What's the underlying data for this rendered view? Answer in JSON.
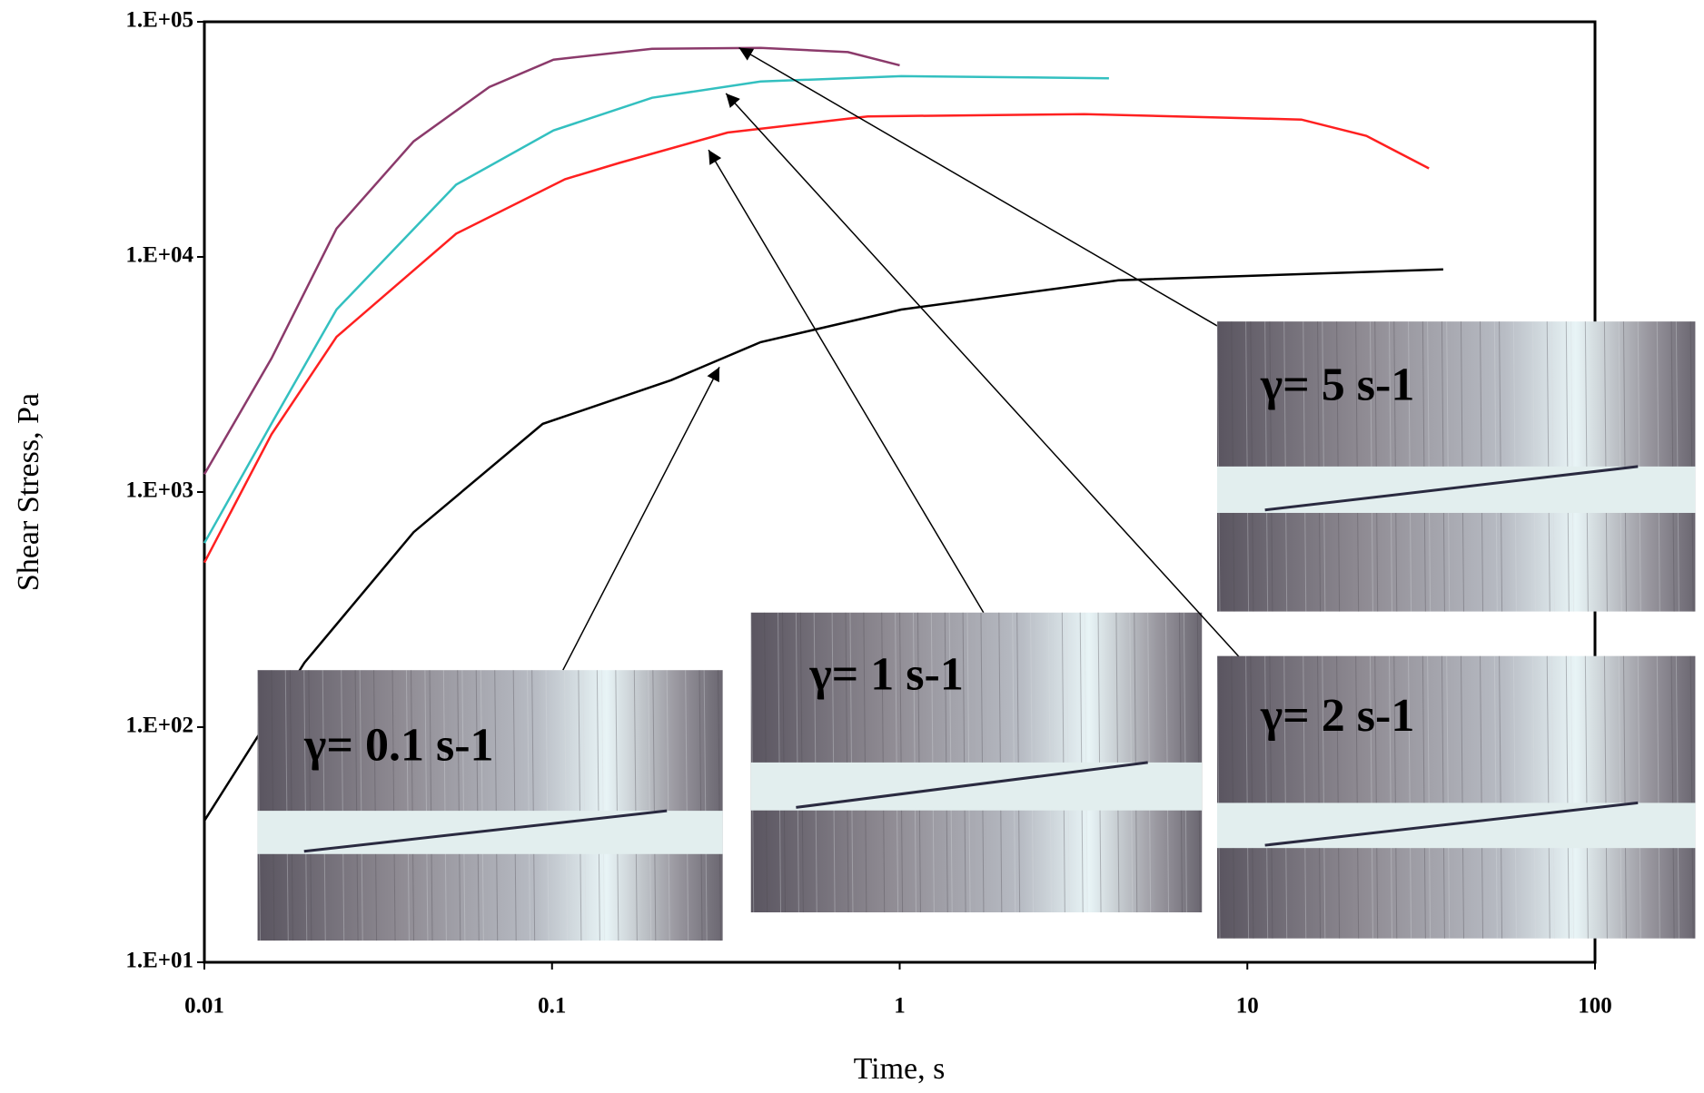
{
  "chart_data": {
    "type": "line",
    "xlabel": "Time, s",
    "ylabel": "Shear Stress, Pa",
    "log_x": true,
    "log_y": true,
    "xlim": [
      0.01,
      100
    ],
    "ylim": [
      10,
      100000
    ],
    "xticks": [
      0.01,
      0.1,
      1,
      10,
      100
    ],
    "yticks": [
      {
        "value": 10,
        "label": "1.E+01"
      },
      {
        "value": 100,
        "label": "1.E+02"
      },
      {
        "value": 1000,
        "label": "1.E+03"
      },
      {
        "value": 10000,
        "label": "1.E+04"
      },
      {
        "value": 100000,
        "label": "1.E+05"
      }
    ],
    "series": [
      {
        "color": "#8b3a6b",
        "x": [
          0.01,
          0.0156,
          0.024,
          0.04,
          0.066,
          0.101,
          0.194,
          0.398,
          0.71,
          1.0
        ],
        "values": [
          1190,
          3700,
          13200,
          31000,
          52800,
          69000,
          76700,
          77500,
          74300,
          65300
        ]
      },
      {
        "color": "#33c0c0",
        "x": [
          0.01,
          0.0156,
          0.024,
          0.053,
          0.101,
          0.194,
          0.398,
          1.01,
          4.0
        ],
        "values": [
          607,
          1955,
          5970,
          20300,
          34500,
          47500,
          55700,
          58700,
          57500
        ]
      },
      {
        "color": "#ff2020",
        "x": [
          0.01,
          0.0156,
          0.024,
          0.053,
          0.109,
          0.156,
          0.32,
          0.81,
          3.4,
          14.3,
          22,
          33.3
        ],
        "values": [
          501,
          1760,
          4570,
          12560,
          21400,
          25100,
          33800,
          39600,
          40500,
          38400,
          32700,
          23800
        ]
      },
      {
        "color": "#000000",
        "x": [
          0.01,
          0.0194,
          0.04,
          0.094,
          0.22,
          0.398,
          1.01,
          4.26,
          36.6
        ],
        "values": [
          40,
          188,
          675,
          1950,
          2990,
          4340,
          5970,
          7960,
          8850
        ]
      }
    ],
    "annotations": [
      "γ= 0.1 s-1",
      "γ= 1 s-1",
      "γ= 5 s-1",
      "γ= 2 s-1"
    ]
  }
}
